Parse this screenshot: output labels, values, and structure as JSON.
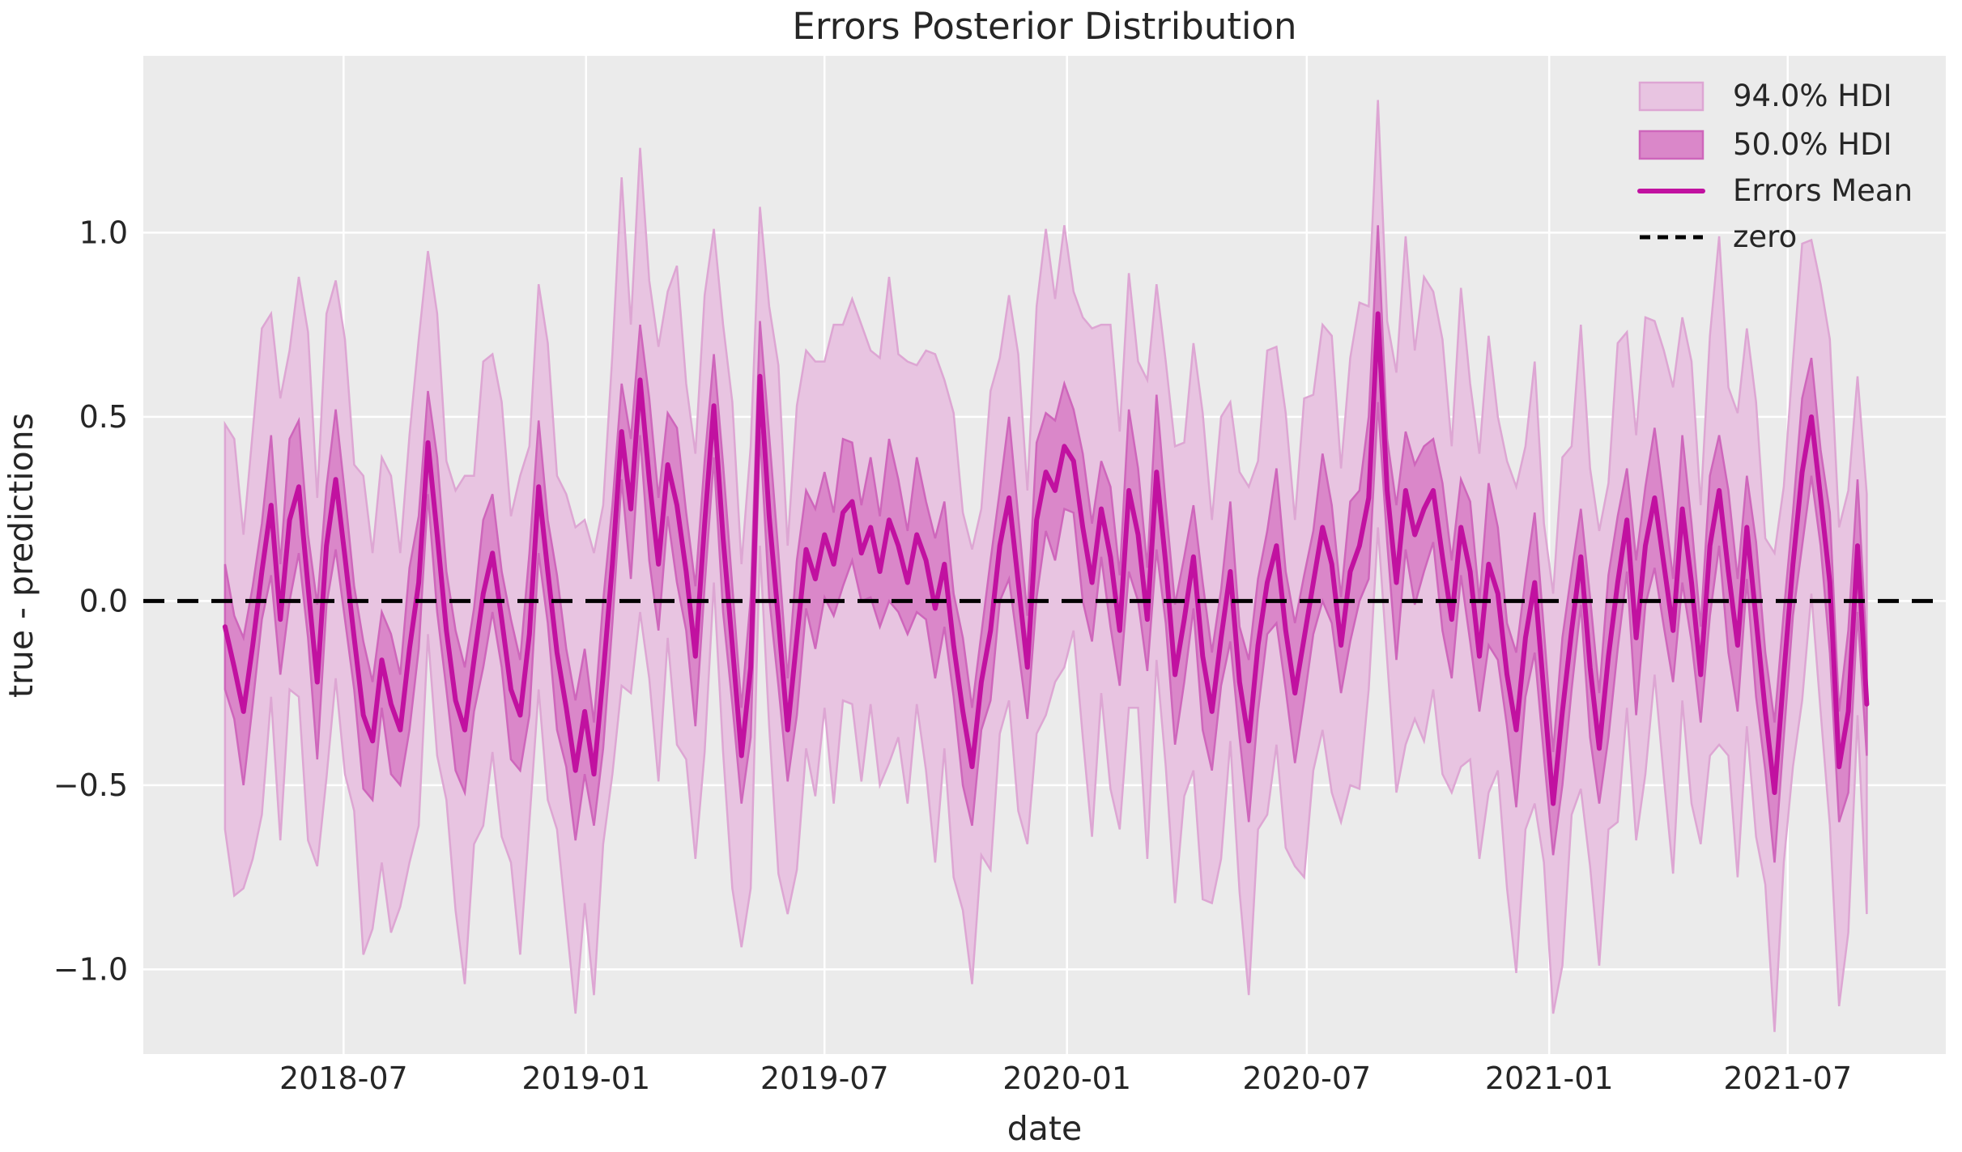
{
  "chart_data": {
    "type": "line",
    "title": "Errors Posterior Distribution",
    "xlabel": "date",
    "ylabel": "true - predictions",
    "grid": true,
    "legend_position": "upper right",
    "x_start": "2018-04-02",
    "x_step_days": 7,
    "n_points": 179,
    "xlim": [
      "2018-01-30",
      "2021-10-29"
    ],
    "ylim": [
      -1.23,
      1.48
    ],
    "x_ticks": [
      {
        "date": "2018-07-01",
        "label": "2018-07"
      },
      {
        "date": "2019-01-01",
        "label": "2019-01"
      },
      {
        "date": "2019-07-01",
        "label": "2019-07"
      },
      {
        "date": "2020-01-01",
        "label": "2020-01"
      },
      {
        "date": "2020-07-01",
        "label": "2020-07"
      },
      {
        "date": "2021-01-01",
        "label": "2021-01"
      },
      {
        "date": "2021-07-01",
        "label": "2021-07"
      }
    ],
    "y_ticks": [
      {
        "value": 1.0,
        "label": "1.0"
      },
      {
        "value": 0.5,
        "label": "0.5"
      },
      {
        "value": 0.0,
        "label": "0.0"
      },
      {
        "value": -0.5,
        "label": "−0.5"
      },
      {
        "value": -1.0,
        "label": "−1.0"
      }
    ],
    "legend": [
      {
        "label": "94.0% HDI",
        "type": "patch",
        "color_key": "hdi94_fill"
      },
      {
        "label": "50.0% HDI",
        "type": "patch",
        "color_key": "hdi50_fill"
      },
      {
        "label": "Errors Mean",
        "type": "line",
        "color_key": "mean_line"
      },
      {
        "label": "zero",
        "type": "dashed-line",
        "color_key": "zero_line"
      }
    ],
    "zero_line_value": 0.0,
    "band_rule": "hdi upper/lower = mean +/- halfwidth",
    "series": {
      "mean": [
        -0.07,
        -0.18,
        -0.3,
        -0.12,
        0.08,
        0.26,
        -0.05,
        0.22,
        0.31,
        0.04,
        -0.22,
        0.15,
        0.33,
        0.12,
        -0.1,
        -0.31,
        -0.38,
        -0.16,
        -0.28,
        -0.35,
        -0.13,
        0.05,
        0.43,
        0.18,
        -0.08,
        -0.27,
        -0.35,
        -0.16,
        0.02,
        0.13,
        -0.05,
        -0.24,
        -0.31,
        -0.09,
        0.31,
        0.08,
        -0.14,
        -0.29,
        -0.46,
        -0.3,
        -0.47,
        -0.2,
        0.1,
        0.46,
        0.25,
        0.6,
        0.33,
        0.1,
        0.37,
        0.26,
        0.08,
        -0.15,
        0.21,
        0.53,
        0.17,
        -0.12,
        -0.42,
        -0.18,
        0.61,
        0.23,
        -0.05,
        -0.35,
        -0.1,
        0.14,
        0.06,
        0.18,
        0.1,
        0.24,
        0.27,
        0.13,
        0.2,
        0.08,
        0.22,
        0.15,
        0.05,
        0.18,
        0.11,
        -0.02,
        0.1,
        -0.12,
        -0.3,
        -0.45,
        -0.22,
        -0.08,
        0.15,
        0.28,
        0.05,
        -0.18,
        0.22,
        0.35,
        0.3,
        0.42,
        0.38,
        0.2,
        0.05,
        0.25,
        0.12,
        -0.08,
        0.3,
        0.18,
        -0.05,
        0.35,
        0.1,
        -0.2,
        -0.05,
        0.12,
        -0.15,
        -0.3,
        -0.1,
        0.08,
        -0.22,
        -0.38,
        -0.12,
        0.05,
        0.15,
        -0.08,
        -0.25,
        -0.1,
        0.05,
        0.2,
        0.1,
        -0.12,
        0.08,
        0.15,
        0.28,
        0.78,
        0.3,
        0.05,
        0.3,
        0.18,
        0.25,
        0.3,
        0.12,
        -0.05,
        0.2,
        0.08,
        -0.15,
        0.1,
        0.02,
        -0.2,
        -0.35,
        -0.1,
        0.05,
        -0.25,
        -0.55,
        -0.3,
        -0.08,
        0.12,
        -0.18,
        -0.4,
        -0.15,
        0.05,
        0.22,
        -0.1,
        0.15,
        0.28,
        0.1,
        -0.08,
        0.25,
        0.05,
        -0.2,
        0.15,
        0.3,
        0.08,
        -0.12,
        0.2,
        -0.05,
        -0.3,
        -0.52,
        -0.2,
        0.1,
        0.35,
        0.5,
        0.28,
        0.05,
        -0.45,
        -0.3,
        0.15,
        -0.28
      ],
      "hdi94_halfwidth": [
        0.55,
        0.62,
        0.48,
        0.58,
        0.66,
        0.52,
        0.6,
        0.46,
        0.57,
        0.69,
        0.5,
        0.63,
        0.54,
        0.59,
        0.47,
        0.65,
        0.51,
        0.55,
        0.62,
        0.48,
        0.58,
        0.66,
        0.52,
        0.6,
        0.46,
        0.57,
        0.69,
        0.5,
        0.63,
        0.54,
        0.59,
        0.47,
        0.65,
        0.51,
        0.55,
        0.62,
        0.48,
        0.58,
        0.66,
        0.52,
        0.6,
        0.46,
        0.57,
        0.69,
        0.5,
        0.63,
        0.54,
        0.59,
        0.47,
        0.65,
        0.51,
        0.55,
        0.62,
        0.48,
        0.58,
        0.66,
        0.52,
        0.6,
        0.46,
        0.57,
        0.69,
        0.5,
        0.63,
        0.54,
        0.59,
        0.47,
        0.65,
        0.51,
        0.55,
        0.62,
        0.48,
        0.58,
        0.66,
        0.52,
        0.6,
        0.46,
        0.57,
        0.69,
        0.5,
        0.63,
        0.54,
        0.59,
        0.47,
        0.65,
        0.51,
        0.55,
        0.62,
        0.48,
        0.58,
        0.66,
        0.52,
        0.6,
        0.46,
        0.57,
        0.69,
        0.5,
        0.63,
        0.54,
        0.59,
        0.47,
        0.65,
        0.51,
        0.55,
        0.62,
        0.48,
        0.58,
        0.66,
        0.52,
        0.6,
        0.46,
        0.57,
        0.69,
        0.5,
        0.63,
        0.54,
        0.59,
        0.47,
        0.65,
        0.51,
        0.55,
        0.62,
        0.48,
        0.58,
        0.66,
        0.52,
        0.58,
        0.46,
        0.57,
        0.69,
        0.5,
        0.63,
        0.54,
        0.59,
        0.47,
        0.65,
        0.51,
        0.55,
        0.62,
        0.48,
        0.58,
        0.66,
        0.52,
        0.6,
        0.46,
        0.57,
        0.69,
        0.5,
        0.63,
        0.54,
        0.59,
        0.47,
        0.65,
        0.51,
        0.55,
        0.62,
        0.48,
        0.58,
        0.66,
        0.52,
        0.6,
        0.46,
        0.57,
        0.69,
        0.5,
        0.63,
        0.54,
        0.59,
        0.47,
        0.65,
        0.51,
        0.55,
        0.62,
        0.48,
        0.58,
        0.66,
        0.65,
        0.6,
        0.46,
        0.57
      ],
      "hdi50_halfwidth": [
        0.17,
        0.14,
        0.2,
        0.16,
        0.13,
        0.19,
        0.15,
        0.22,
        0.18,
        0.14,
        0.21,
        0.16,
        0.19,
        0.17,
        0.14,
        0.2,
        0.16,
        0.13,
        0.19,
        0.15,
        0.22,
        0.18,
        0.14,
        0.21,
        0.16,
        0.19,
        0.17,
        0.14,
        0.2,
        0.16,
        0.13,
        0.19,
        0.15,
        0.22,
        0.18,
        0.14,
        0.21,
        0.16,
        0.19,
        0.17,
        0.14,
        0.2,
        0.16,
        0.13,
        0.19,
        0.15,
        0.22,
        0.18,
        0.14,
        0.21,
        0.16,
        0.19,
        0.17,
        0.14,
        0.2,
        0.16,
        0.13,
        0.19,
        0.15,
        0.22,
        0.18,
        0.14,
        0.21,
        0.16,
        0.19,
        0.17,
        0.14,
        0.2,
        0.16,
        0.13,
        0.19,
        0.15,
        0.22,
        0.18,
        0.14,
        0.21,
        0.16,
        0.19,
        0.17,
        0.14,
        0.2,
        0.16,
        0.13,
        0.19,
        0.15,
        0.22,
        0.18,
        0.14,
        0.21,
        0.16,
        0.19,
        0.17,
        0.14,
        0.2,
        0.16,
        0.13,
        0.19,
        0.15,
        0.22,
        0.18,
        0.14,
        0.21,
        0.16,
        0.19,
        0.17,
        0.14,
        0.2,
        0.16,
        0.13,
        0.19,
        0.15,
        0.22,
        0.18,
        0.14,
        0.21,
        0.16,
        0.19,
        0.17,
        0.14,
        0.2,
        0.16,
        0.13,
        0.19,
        0.15,
        0.22,
        0.24,
        0.14,
        0.21,
        0.16,
        0.19,
        0.17,
        0.14,
        0.2,
        0.16,
        0.13,
        0.19,
        0.15,
        0.22,
        0.18,
        0.14,
        0.21,
        0.16,
        0.19,
        0.17,
        0.14,
        0.2,
        0.16,
        0.13,
        0.19,
        0.15,
        0.22,
        0.18,
        0.14,
        0.21,
        0.16,
        0.19,
        0.17,
        0.14,
        0.2,
        0.16,
        0.13,
        0.19,
        0.15,
        0.22,
        0.18,
        0.14,
        0.21,
        0.16,
        0.19,
        0.17,
        0.14,
        0.2,
        0.16,
        0.13,
        0.19,
        0.15,
        0.22,
        0.18,
        0.14
      ]
    },
    "colors": {
      "background_outer": "#ffffff",
      "background_plot": "#ebebeb",
      "grid": "#ffffff",
      "text": "#262626",
      "hdi94_fill": "#e8c4e1",
      "hdi94_edge": "#dda6d3",
      "hdi50_fill": "#da87c9",
      "hdi50_edge": "#ce66bb",
      "mean_line": "#c111a0",
      "zero_line": "#000000"
    }
  }
}
